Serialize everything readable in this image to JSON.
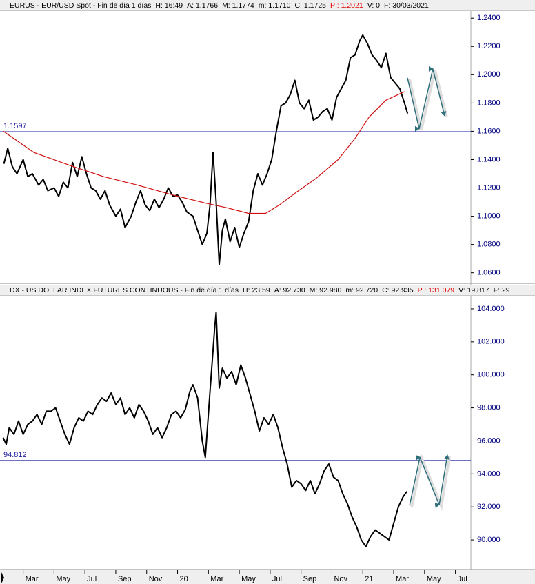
{
  "chart_data": [
    {
      "type": "line",
      "header": [
        {
          "text": "EURUS - EUR/USD Spot - Fin de día 1 días",
          "color": "#000000"
        },
        {
          "text": "H: 16:49",
          "color": "#000000"
        },
        {
          "text": "A: 1.1766",
          "color": "#000000"
        },
        {
          "text": "M: 1.1774",
          "color": "#000000"
        },
        {
          "text": "m: 1.1710",
          "color": "#000000"
        },
        {
          "text": "C: 1.1725",
          "color": "#000000"
        },
        {
          "text": "P : 1.2021",
          "color": "#e00000"
        },
        {
          "text": "V: 0",
          "color": "#000000"
        },
        {
          "text": "F: 30/03/2021",
          "color": "#000000"
        }
      ],
      "xlim": [
        1.5,
        32
      ],
      "ylim": [
        1.054,
        1.244
      ],
      "yticks": [
        {
          "value": 1.06,
          "label": "1.0600"
        },
        {
          "value": 1.08,
          "label": "1.0800"
        },
        {
          "value": 1.1,
          "label": "1.1000"
        },
        {
          "value": 1.12,
          "label": "1.1200"
        },
        {
          "value": 1.14,
          "label": "1.1400"
        },
        {
          "value": 1.16,
          "label": "1.1600"
        },
        {
          "value": 1.18,
          "label": "1.1800"
        },
        {
          "value": 1.2,
          "label": "1.2000"
        },
        {
          "value": 1.22,
          "label": "1.2200"
        },
        {
          "value": 1.24,
          "label": "1.2400"
        }
      ],
      "hline": 1.1597,
      "hline_color": "#1a1aa0",
      "series": [
        {
          "color": "#000000",
          "x": [
            1.75,
            2.0,
            2.3,
            2.6,
            3.0,
            3.3,
            3.6,
            4.0,
            4.3,
            4.6,
            5.0,
            5.3,
            5.6,
            5.9,
            6.2,
            6.5,
            6.8,
            7.1,
            7.4,
            7.7,
            8.0,
            8.3,
            8.6,
            9.0,
            9.3,
            9.6,
            10.0,
            10.3,
            10.6,
            10.9,
            11.2,
            11.5,
            11.8,
            12.1,
            12.4,
            12.7,
            13.0,
            13.3,
            13.6,
            14.0,
            14.3,
            14.6,
            14.9,
            15.1,
            15.3,
            15.5,
            15.7,
            15.9,
            16.1,
            16.4,
            16.7,
            17.0,
            17.3,
            17.6,
            17.9,
            18.2,
            18.5,
            18.8,
            19.1,
            19.4,
            19.7,
            20.0,
            20.3,
            20.6,
            20.9,
            21.2,
            21.5,
            21.8,
            22.1,
            22.4,
            22.7,
            23.0,
            23.3,
            23.6,
            23.9,
            24.2,
            24.5,
            24.8,
            25.0,
            25.3,
            25.6,
            25.9,
            26.2,
            26.5,
            26.8,
            27.1,
            27.4,
            27.7,
            27.9
          ],
          "values": [
            1.137,
            1.148,
            1.135,
            1.13,
            1.14,
            1.128,
            1.13,
            1.122,
            1.126,
            1.118,
            1.12,
            1.114,
            1.124,
            1.12,
            1.138,
            1.128,
            1.142,
            1.13,
            1.12,
            1.118,
            1.112,
            1.118,
            1.108,
            1.1,
            1.105,
            1.092,
            1.1,
            1.11,
            1.118,
            1.108,
            1.104,
            1.112,
            1.106,
            1.112,
            1.12,
            1.114,
            1.115,
            1.11,
            1.103,
            1.1,
            1.09,
            1.08,
            1.088,
            1.108,
            1.145,
            1.11,
            1.066,
            1.09,
            1.098,
            1.082,
            1.092,
            1.078,
            1.088,
            1.096,
            1.118,
            1.13,
            1.122,
            1.13,
            1.14,
            1.16,
            1.178,
            1.18,
            1.186,
            1.196,
            1.18,
            1.176,
            1.182,
            1.168,
            1.17,
            1.174,
            1.176,
            1.168,
            1.184,
            1.19,
            1.196,
            1.212,
            1.214,
            1.224,
            1.228,
            1.222,
            1.214,
            1.21,
            1.205,
            1.215,
            1.198,
            1.194,
            1.19,
            1.18,
            1.1725
          ]
        },
        {
          "color": "#d01010",
          "x": [
            1.72,
            3.7,
            6.0,
            8.2,
            10.4,
            12.7,
            14.9,
            16.2,
            17.6,
            18.7,
            19.6,
            20.7,
            22.0,
            23.4,
            24.5,
            25.4,
            26.5,
            27.7
          ],
          "values": [
            1.16,
            1.145,
            1.136,
            1.128,
            1.122,
            1.115,
            1.109,
            1.106,
            1.102,
            1.102,
            1.108,
            1.117,
            1.127,
            1.14,
            1.155,
            1.17,
            1.182,
            1.188
          ]
        },
        {
          "color": "#2e6f7a",
          "arrow": true,
          "x": [
            27.89,
            28.65,
            29.54,
            30.3
          ],
          "values": [
            1.1978,
            1.1618,
            1.2041,
            1.171
          ]
        }
      ]
    },
    {
      "type": "line",
      "header": [
        {
          "text": "DX - US DOLLAR INDEX FUTURES CONTINUOUS - Fin de día 1 días",
          "color": "#000000"
        },
        {
          "text": "H: 23:59",
          "color": "#000000"
        },
        {
          "text": "A: 92.730",
          "color": "#000000"
        },
        {
          "text": "M: 92.980",
          "color": "#000000"
        },
        {
          "text": "m: 92.720",
          "color": "#000000"
        },
        {
          "text": "C: 92.935",
          "color": "#000000"
        },
        {
          "text": "P : 131.079",
          "color": "#e00000"
        },
        {
          "text": "V: 19,817",
          "color": "#000000"
        },
        {
          "text": "F: 29",
          "color": "#000000"
        }
      ],
      "xlim": [
        1.5,
        32
      ],
      "xticks": [
        {
          "value": 3,
          "label": "Mar"
        },
        {
          "value": 5,
          "label": "May"
        },
        {
          "value": 7,
          "label": "Jul"
        },
        {
          "value": 9,
          "label": "Sep"
        },
        {
          "value": 11,
          "label": "Nov"
        },
        {
          "value": 13,
          "label": "20"
        },
        {
          "value": 15,
          "label": "Mar"
        },
        {
          "value": 17,
          "label": "May"
        },
        {
          "value": 19,
          "label": "Jul"
        },
        {
          "value": 21,
          "label": "Sep"
        },
        {
          "value": 23,
          "label": "Nov"
        },
        {
          "value": 25,
          "label": "21"
        },
        {
          "value": 27,
          "label": "Mar"
        },
        {
          "value": 29,
          "label": "May"
        },
        {
          "value": 31,
          "label": "Jul"
        }
      ],
      "ylim": [
        88.25,
        104.75
      ],
      "yticks": [
        {
          "value": 90,
          "label": "90.000"
        },
        {
          "value": 92,
          "label": "92.000"
        },
        {
          "value": 94,
          "label": "94.000"
        },
        {
          "value": 96,
          "label": "96.000"
        },
        {
          "value": 98,
          "label": "98.000"
        },
        {
          "value": 100,
          "label": "100.000"
        },
        {
          "value": 102,
          "label": "102.000"
        },
        {
          "value": 104,
          "label": "104.000"
        }
      ],
      "hline": 94.812,
      "hline_color": "#1a1aa0",
      "series": [
        {
          "color": "#000000",
          "x": [
            1.7,
            1.9,
            2.1,
            2.4,
            2.7,
            3.0,
            3.3,
            3.6,
            3.9,
            4.2,
            4.5,
            4.8,
            5.1,
            5.4,
            5.7,
            6.0,
            6.3,
            6.6,
            6.9,
            7.2,
            7.5,
            7.8,
            8.1,
            8.4,
            8.7,
            9.0,
            9.3,
            9.6,
            9.9,
            10.2,
            10.5,
            10.8,
            11.1,
            11.4,
            11.7,
            12.0,
            12.3,
            12.6,
            12.9,
            13.2,
            13.5,
            13.8,
            14.0,
            14.3,
            14.6,
            14.8,
            15.1,
            15.4,
            15.5,
            15.7,
            15.9,
            16.2,
            16.5,
            16.8,
            17.1,
            17.4,
            17.7,
            18.0,
            18.3,
            18.6,
            18.9,
            19.2,
            19.5,
            19.8,
            20.1,
            20.4,
            20.7,
            21.0,
            21.3,
            21.6,
            21.9,
            22.2,
            22.5,
            22.8,
            23.1,
            23.4,
            23.7,
            24.0,
            24.3,
            24.6,
            24.9,
            25.2,
            25.5,
            25.8,
            26.1,
            26.4,
            26.7,
            27.0,
            27.3,
            27.6,
            27.85
          ],
          "values": [
            96.2,
            95.8,
            96.8,
            96.4,
            97.2,
            96.4,
            97.0,
            97.2,
            97.6,
            97.0,
            97.8,
            97.8,
            98.0,
            97.2,
            96.4,
            95.8,
            96.8,
            97.4,
            97.2,
            97.8,
            97.6,
            98.2,
            98.6,
            98.4,
            98.9,
            98.2,
            98.6,
            97.6,
            98.0,
            97.4,
            98.2,
            97.8,
            97.2,
            96.4,
            96.8,
            96.2,
            96.8,
            97.6,
            97.8,
            97.4,
            97.9,
            99.0,
            99.4,
            98.6,
            96.0,
            95.0,
            99.0,
            102.8,
            103.8,
            99.2,
            100.4,
            99.8,
            100.2,
            99.4,
            100.6,
            99.8,
            98.8,
            97.8,
            96.6,
            97.4,
            97.0,
            97.6,
            96.8,
            95.6,
            94.6,
            93.2,
            93.6,
            93.4,
            93.0,
            93.6,
            92.8,
            93.4,
            94.2,
            94.6,
            93.8,
            93.6,
            92.8,
            92.2,
            91.4,
            90.8,
            90.0,
            89.6,
            90.2,
            90.6,
            90.4,
            90.2,
            90.0,
            91.0,
            92.0,
            92.6,
            92.935
          ]
        },
        {
          "color": "#2e6f7a",
          "arrow": true,
          "x": [
            28.03,
            28.7,
            29.95,
            30.48
          ],
          "values": [
            92.09,
            95.01,
            92.13,
            95.14
          ]
        }
      ]
    }
  ]
}
